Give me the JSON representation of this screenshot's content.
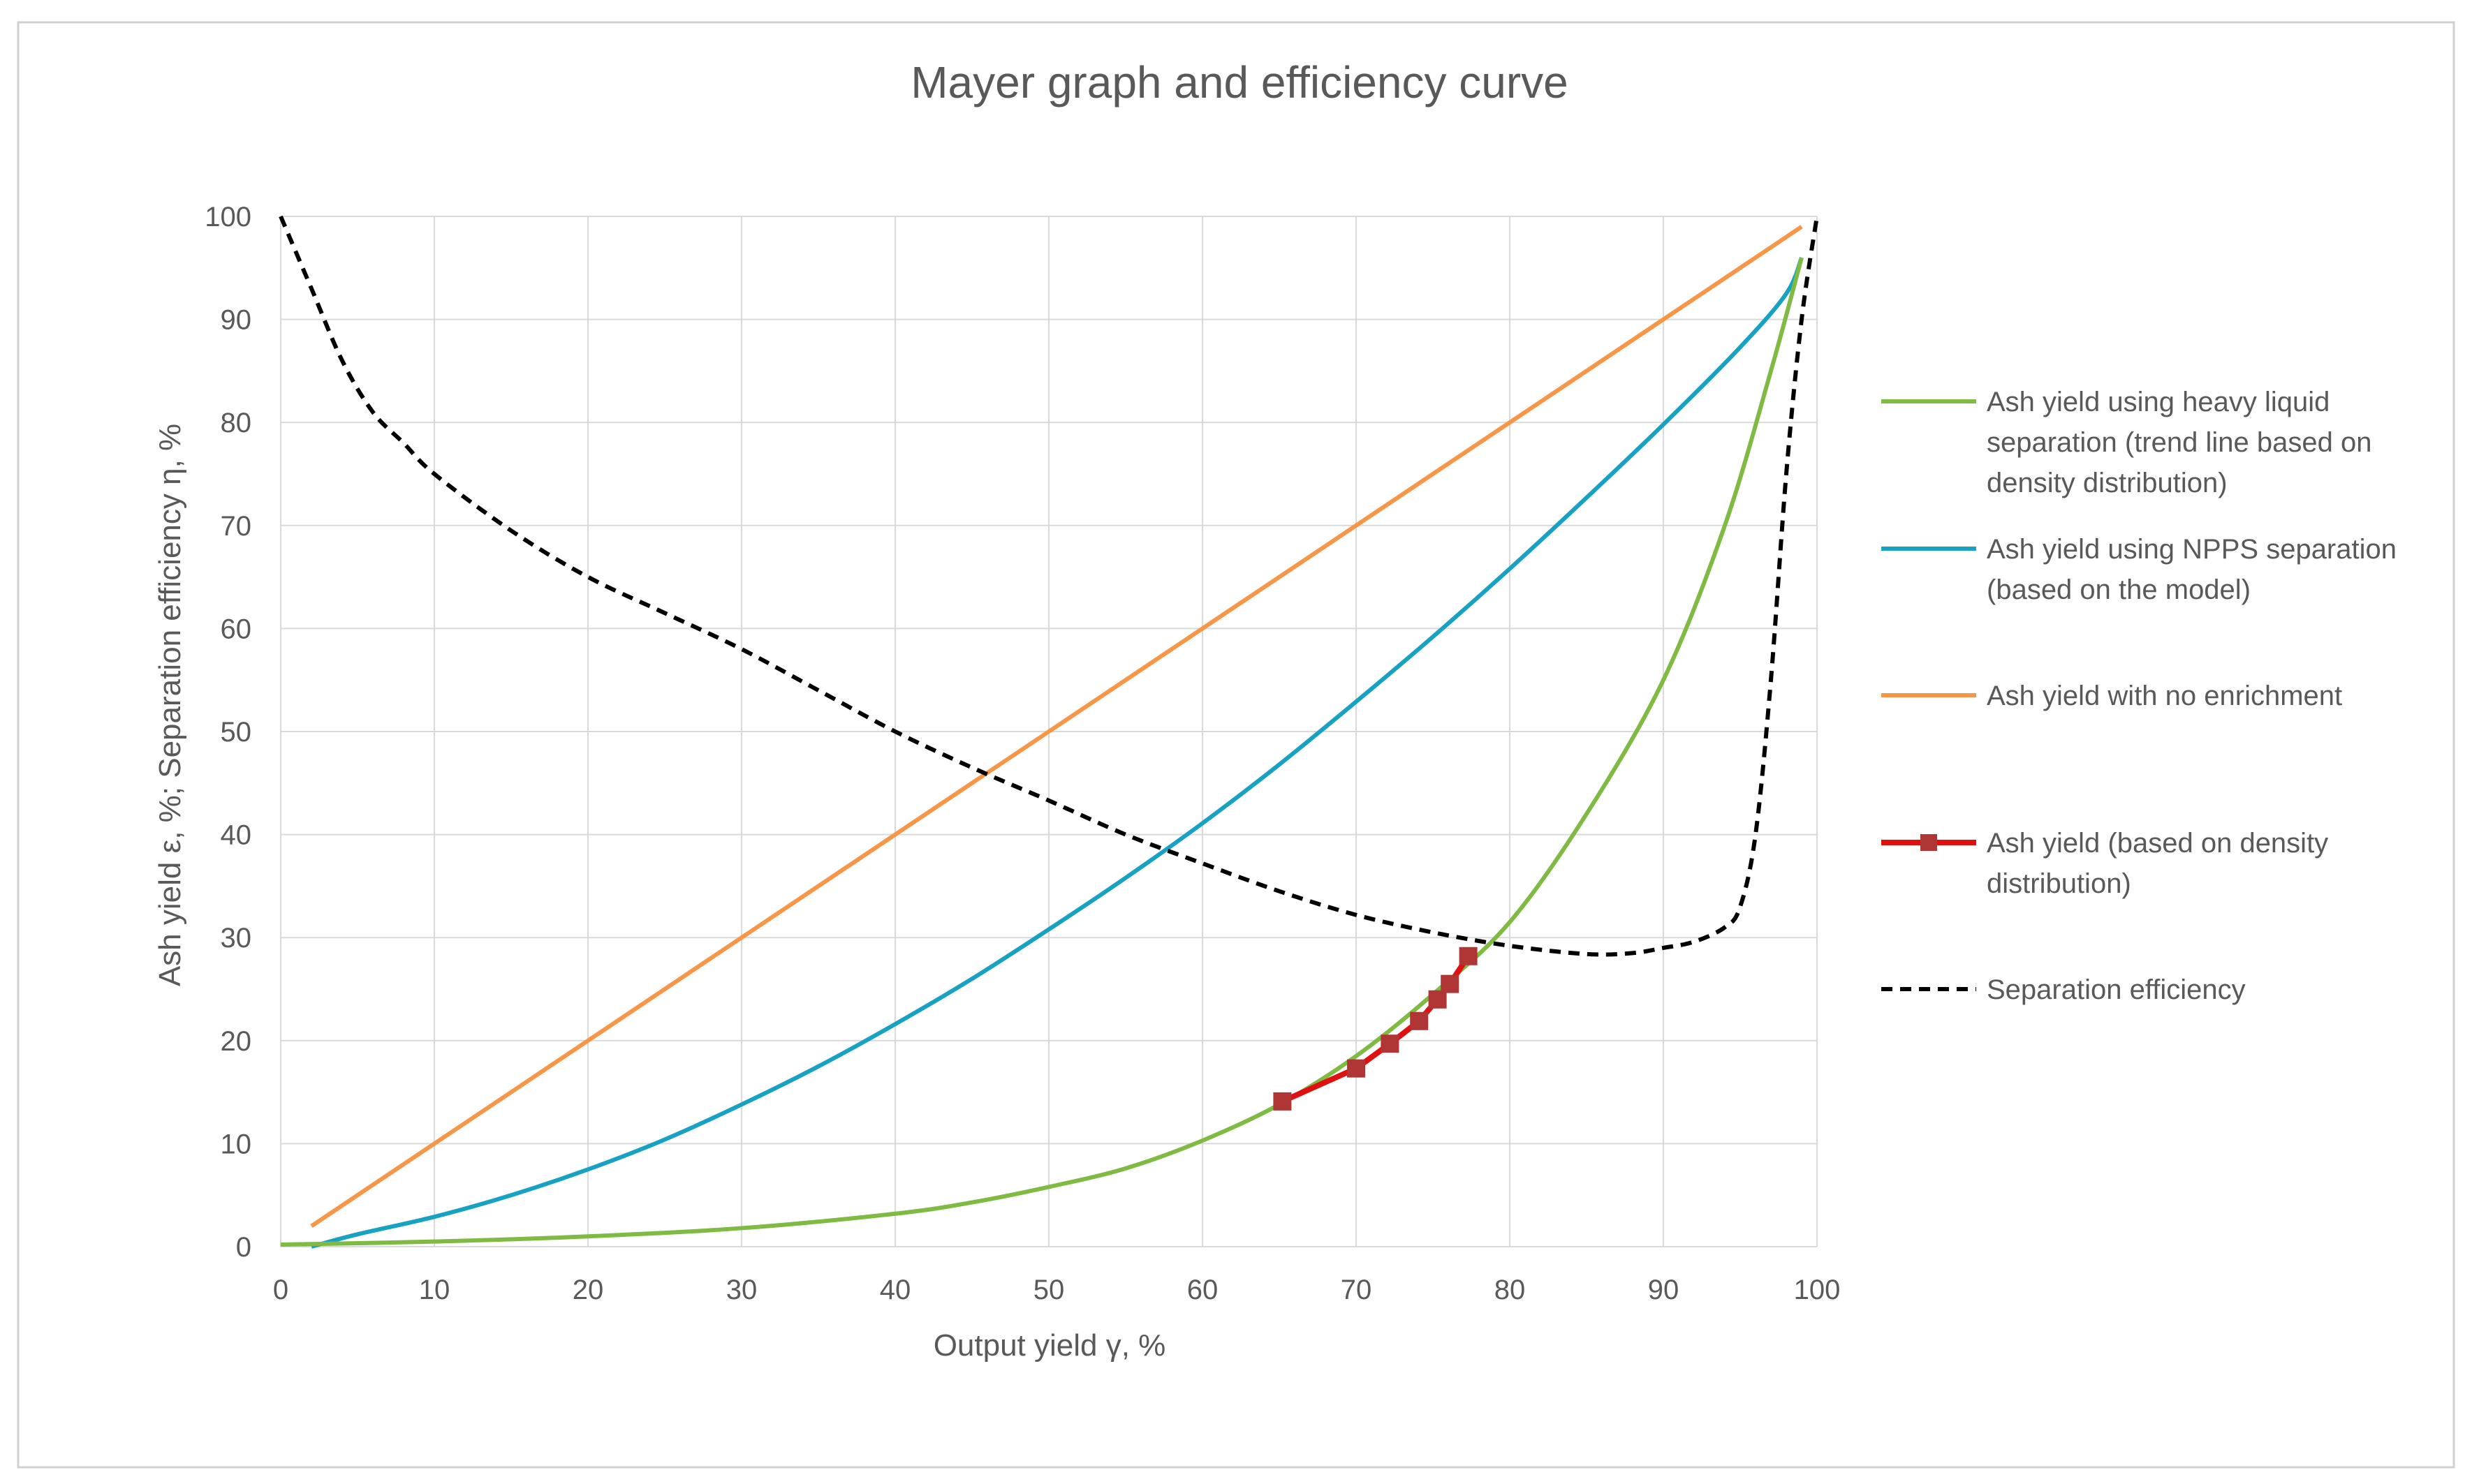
{
  "chart_data": {
    "type": "line",
    "title": "Mayer graph and efficiency curve",
    "xlabel": "Output yield γ, %",
    "ylabel": "Ash yield ε, %; Separation efficiency η, %",
    "xlim": [
      0,
      100
    ],
    "ylim": [
      0,
      100
    ],
    "x_ticks": [
      "0",
      "10",
      "20",
      "30",
      "40",
      "50",
      "60",
      "70",
      "80",
      "90",
      "100"
    ],
    "y_ticks": [
      "0",
      "10",
      "20",
      "30",
      "40",
      "50",
      "60",
      "70",
      "80",
      "90",
      "100"
    ],
    "grid": true,
    "legend_position": "right",
    "series": [
      {
        "name": "Ash yield using heavy liquid separation (trend line based on density distribution)",
        "legend_lines": [
          "Ash yield using heavy liquid",
          "separation (trend line based on",
          "density distribution)"
        ],
        "color": "#7fba42",
        "style": "solid",
        "x": [
          0,
          10,
          20,
          30,
          40,
          45,
          50,
          55,
          60,
          65,
          70,
          75,
          80,
          85,
          90,
          94,
          97,
          99
        ],
        "y": [
          0.2,
          0.5,
          1.0,
          1.8,
          3.2,
          4.3,
          5.8,
          7.6,
          10.3,
          13.8,
          18.5,
          24.5,
          31.5,
          42,
          55,
          70,
          85,
          96
        ]
      },
      {
        "name": "Ash yield using NPPS separation (based on the model)",
        "legend_lines": [
          "Ash yield using NPPS separation",
          "(based on the model)"
        ],
        "color": "#17a2c4",
        "style": "solid",
        "x": [
          2,
          5,
          10,
          15,
          20,
          25,
          30,
          35,
          40,
          45,
          50,
          55,
          60,
          65,
          70,
          75,
          80,
          85,
          90,
          95,
          98,
          99
        ],
        "y": [
          0,
          1.2,
          2.9,
          5.0,
          7.5,
          10.4,
          13.8,
          17.5,
          21.6,
          26.0,
          30.8,
          35.8,
          41.1,
          46.8,
          52.9,
          59.2,
          65.8,
          72.7,
          79.8,
          87.3,
          92.5,
          96
        ]
      },
      {
        "name": "Ash yield with no enrichment",
        "legend_lines": [
          "Ash yield with no enrichment"
        ],
        "color": "#f79646",
        "style": "solid",
        "x": [
          2,
          99
        ],
        "y": [
          2,
          99
        ]
      },
      {
        "name": "Ash yield (based on density distribution)",
        "legend_lines": [
          "Ash yield (based on density",
          "distribution)"
        ],
        "color": "#e01010",
        "marker_color": "#b03535",
        "style": "markers",
        "x": [
          65.2,
          70,
          72.2,
          74.1,
          75.3,
          76.1,
          77.3
        ],
        "y": [
          14.1,
          17.3,
          19.7,
          21.9,
          24.0,
          25.5,
          28.2
        ]
      },
      {
        "name": "Separation efficiency",
        "legend_lines": [
          "Separation efficiency"
        ],
        "color": "#000000",
        "style": "dashed",
        "x": [
          0,
          2,
          4,
          6,
          8,
          10,
          15,
          20,
          25,
          30,
          35,
          40,
          45,
          50,
          55,
          60,
          65,
          70,
          75,
          80,
          85,
          88,
          90,
          92,
          94,
          95,
          96,
          97,
          98,
          99,
          100
        ],
        "y": [
          100,
          93,
          86,
          81,
          78,
          75,
          69.5,
          65,
          61.5,
          58,
          54,
          50,
          46.5,
          43.3,
          40,
          37.2,
          34.5,
          32.2,
          30.5,
          29.2,
          28.4,
          28.5,
          29,
          29.6,
          31,
          33,
          40,
          55,
          75,
          90,
          100
        ]
      }
    ]
  }
}
